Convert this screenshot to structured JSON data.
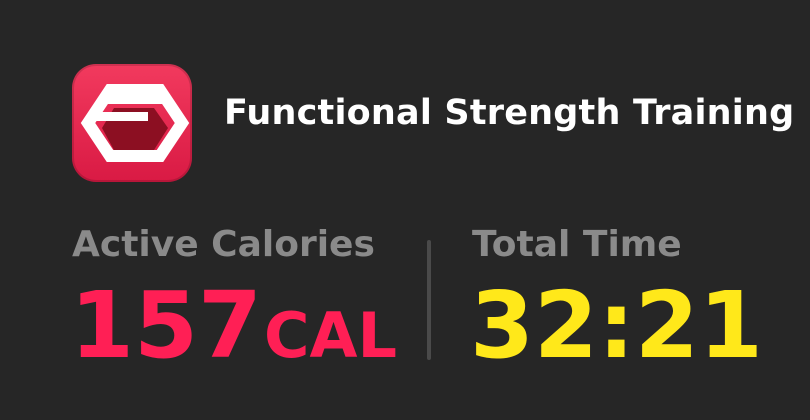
{
  "workout": {
    "title": "Functional Strength Training",
    "app_icon": "functional-strength-icon"
  },
  "metrics": {
    "active_calories": {
      "label": "Active Calories",
      "value": "157",
      "unit": "CAL",
      "color": "#ff1f55"
    },
    "total_time": {
      "label": "Total Time",
      "value": "32:21",
      "color": "#ffe81a"
    }
  },
  "colors": {
    "background": "#262626",
    "icon_background": "#e8294f",
    "label_gray": "#8a8a8a"
  }
}
